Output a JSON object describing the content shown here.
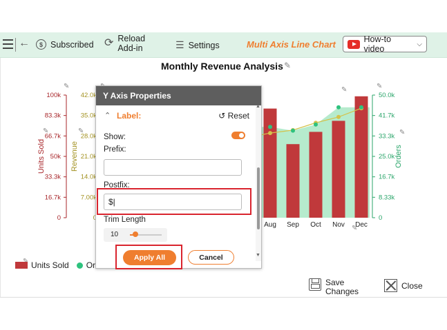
{
  "toolbar": {
    "subscribed": "Subscribed",
    "reload_line1": "Reload",
    "reload_line2": "Add-in",
    "settings": "Settings",
    "chart_type": "Multi Axis Line Chart",
    "howto": "How-to video"
  },
  "chart": {
    "title": "Monthly Revenue Analysis"
  },
  "chart_data": {
    "type": "bar",
    "title": "Monthly Revenue Analysis",
    "categories": [
      "Aug",
      "Sep",
      "Oct",
      "Nov",
      "Dec"
    ],
    "series": [
      {
        "name": "Units Sold",
        "type": "bar",
        "axis": "Units Sold",
        "values": [
          89000,
          60000,
          70000,
          79000,
          99000
        ]
      },
      {
        "name": "Revenue",
        "type": "line",
        "axis": "Revenue",
        "values": [
          29000,
          30000,
          32500,
          34500,
          37500
        ]
      },
      {
        "name": "Orders",
        "type": "area",
        "axis": "Orders",
        "values": [
          37000,
          35500,
          38000,
          45000,
          45000
        ]
      }
    ],
    "axes": [
      {
        "label": "Units Sold",
        "side": "left",
        "ylim": [
          0,
          100000
        ],
        "ticks": [
          "0",
          "16.7k",
          "33.3k",
          "50k",
          "66.7k",
          "83.3k",
          "100k"
        ],
        "color": "#a8262a"
      },
      {
        "label": "Revenue",
        "side": "left",
        "ylim": [
          0,
          42000
        ],
        "ticks": [
          "0",
          "7.00k",
          "14.0k",
          "21.0k",
          "28.0k",
          "35.0k",
          "42.0k"
        ],
        "color": "#a39222"
      },
      {
        "label": "Orders",
        "side": "right",
        "ylim": [
          0,
          50000
        ],
        "ticks": [
          "0",
          "8.33k",
          "16.7k",
          "25.0k",
          "33.3k",
          "41.7k",
          "50.0k"
        ],
        "color": "#2aa56a"
      }
    ],
    "legend": [
      "Units Sold",
      "Orde"
    ],
    "colors": {
      "units": "#c0393b",
      "revenue": "#d4c24a",
      "orders": "#2ec27e",
      "orders_fill": "#b6ebcd"
    }
  },
  "panel": {
    "title": "Y Axis Properties",
    "section": "Label:",
    "reset": "Reset",
    "show_label": "Show:",
    "show_on": true,
    "prefix_label": "Prefix:",
    "prefix_value": "",
    "postfix_label": "Postfix:",
    "postfix_value": "$|",
    "trim_label": "Trim Length",
    "trim_value": "10",
    "apply": "Apply All",
    "cancel": "Cancel"
  },
  "legend": {
    "units": "Units Sold",
    "orders": "Orde"
  },
  "footer": {
    "save_line1": "Save",
    "save_line2": "Changes",
    "close": "Close"
  }
}
